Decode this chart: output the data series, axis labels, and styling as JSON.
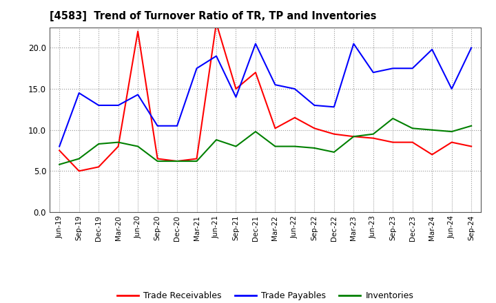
{
  "title": "[4583]  Trend of Turnover Ratio of TR, TP and Inventories",
  "x_labels": [
    "Jun-19",
    "Sep-19",
    "Dec-19",
    "Mar-20",
    "Jun-20",
    "Sep-20",
    "Dec-20",
    "Mar-21",
    "Jun-21",
    "Sep-21",
    "Dec-21",
    "Mar-22",
    "Jun-22",
    "Sep-22",
    "Dec-22",
    "Mar-23",
    "Jun-23",
    "Sep-23",
    "Dec-23",
    "Mar-24",
    "Jun-24",
    "Sep-24"
  ],
  "trade_receivables": [
    7.5,
    5.0,
    5.5,
    8.0,
    22.0,
    6.5,
    6.2,
    6.5,
    23.0,
    15.0,
    17.0,
    10.2,
    11.5,
    10.2,
    9.5,
    9.2,
    9.0,
    8.5,
    8.5,
    7.0,
    8.5,
    8.0
  ],
  "trade_payables": [
    8.0,
    14.5,
    13.0,
    13.0,
    14.3,
    10.5,
    10.5,
    17.5,
    19.0,
    14.0,
    20.5,
    15.5,
    15.0,
    13.0,
    12.8,
    20.5,
    17.0,
    17.5,
    17.5,
    19.8,
    15.0,
    20.0
  ],
  "inventories": [
    5.8,
    6.5,
    8.3,
    8.5,
    8.0,
    6.2,
    6.2,
    6.2,
    8.8,
    8.0,
    9.8,
    8.0,
    8.0,
    7.8,
    7.3,
    9.2,
    9.5,
    11.4,
    10.2,
    10.0,
    9.8,
    10.5
  ],
  "ylim": [
    0.0,
    22.5
  ],
  "yticks": [
    0.0,
    5.0,
    10.0,
    15.0,
    20.0
  ],
  "color_tr": "#FF0000",
  "color_tp": "#0000FF",
  "color_inv": "#008000",
  "background_color": "#FFFFFF",
  "grid_color": "#888888",
  "legend_labels": [
    "Trade Receivables",
    "Trade Payables",
    "Inventories"
  ]
}
